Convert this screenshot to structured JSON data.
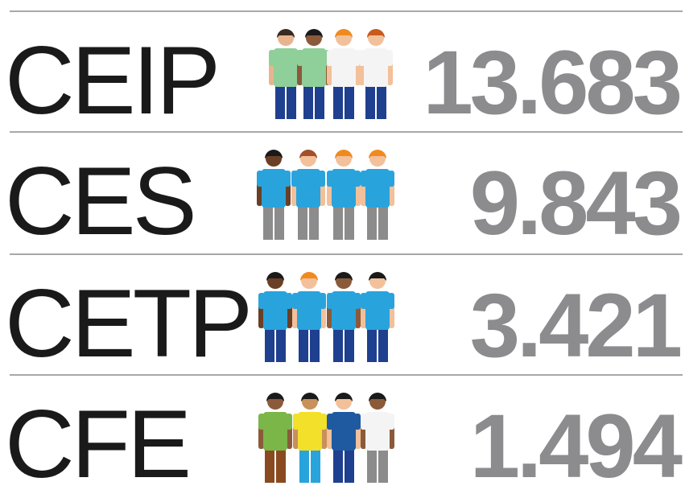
{
  "rows": [
    {
      "label": "CEIP",
      "value": "13.683"
    },
    {
      "label": "CES",
      "value": "9.843"
    },
    {
      "label": "CETP",
      "value": "3.421"
    },
    {
      "label": "CFE",
      "value": "1.494"
    }
  ]
}
